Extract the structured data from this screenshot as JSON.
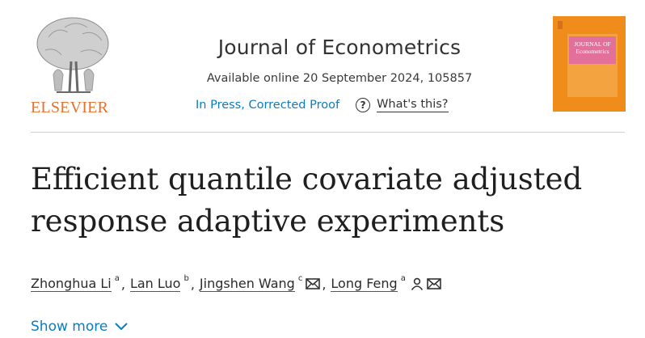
{
  "publisher": {
    "name": "ELSEVIER",
    "logo_icon": "elsevier-tree-icon"
  },
  "journal": {
    "title": "Journal of Econometrics",
    "availability": "Available online 20 September 2024, 105857",
    "status_link": "In Press, Corrected Proof",
    "help_label": "What's this?",
    "help_icon": "question-circle-icon",
    "cover_label": "JOURNAL OF Econometrics"
  },
  "article": {
    "title_line1": "Efficient quantile covariate adjusted",
    "title_line2": "response adaptive experiments"
  },
  "authors": [
    {
      "name": "Zhonghua Li",
      "affiliation": "a"
    },
    {
      "name": "Lan Luo",
      "affiliation": "b"
    },
    {
      "name": "Jingshen Wang",
      "affiliation": "c",
      "icons": [
        "mail-icon"
      ]
    },
    {
      "name": "Long Feng",
      "affiliation": "a",
      "icons": [
        "person-icon",
        "mail-icon"
      ]
    }
  ],
  "separator": ",",
  "show_more": {
    "label": "Show more",
    "icon": "chevron-down-icon"
  },
  "colors": {
    "link": "#0c7dbb",
    "elsevier_orange": "#e8702a",
    "cover_orange": "#ef8c1a"
  }
}
